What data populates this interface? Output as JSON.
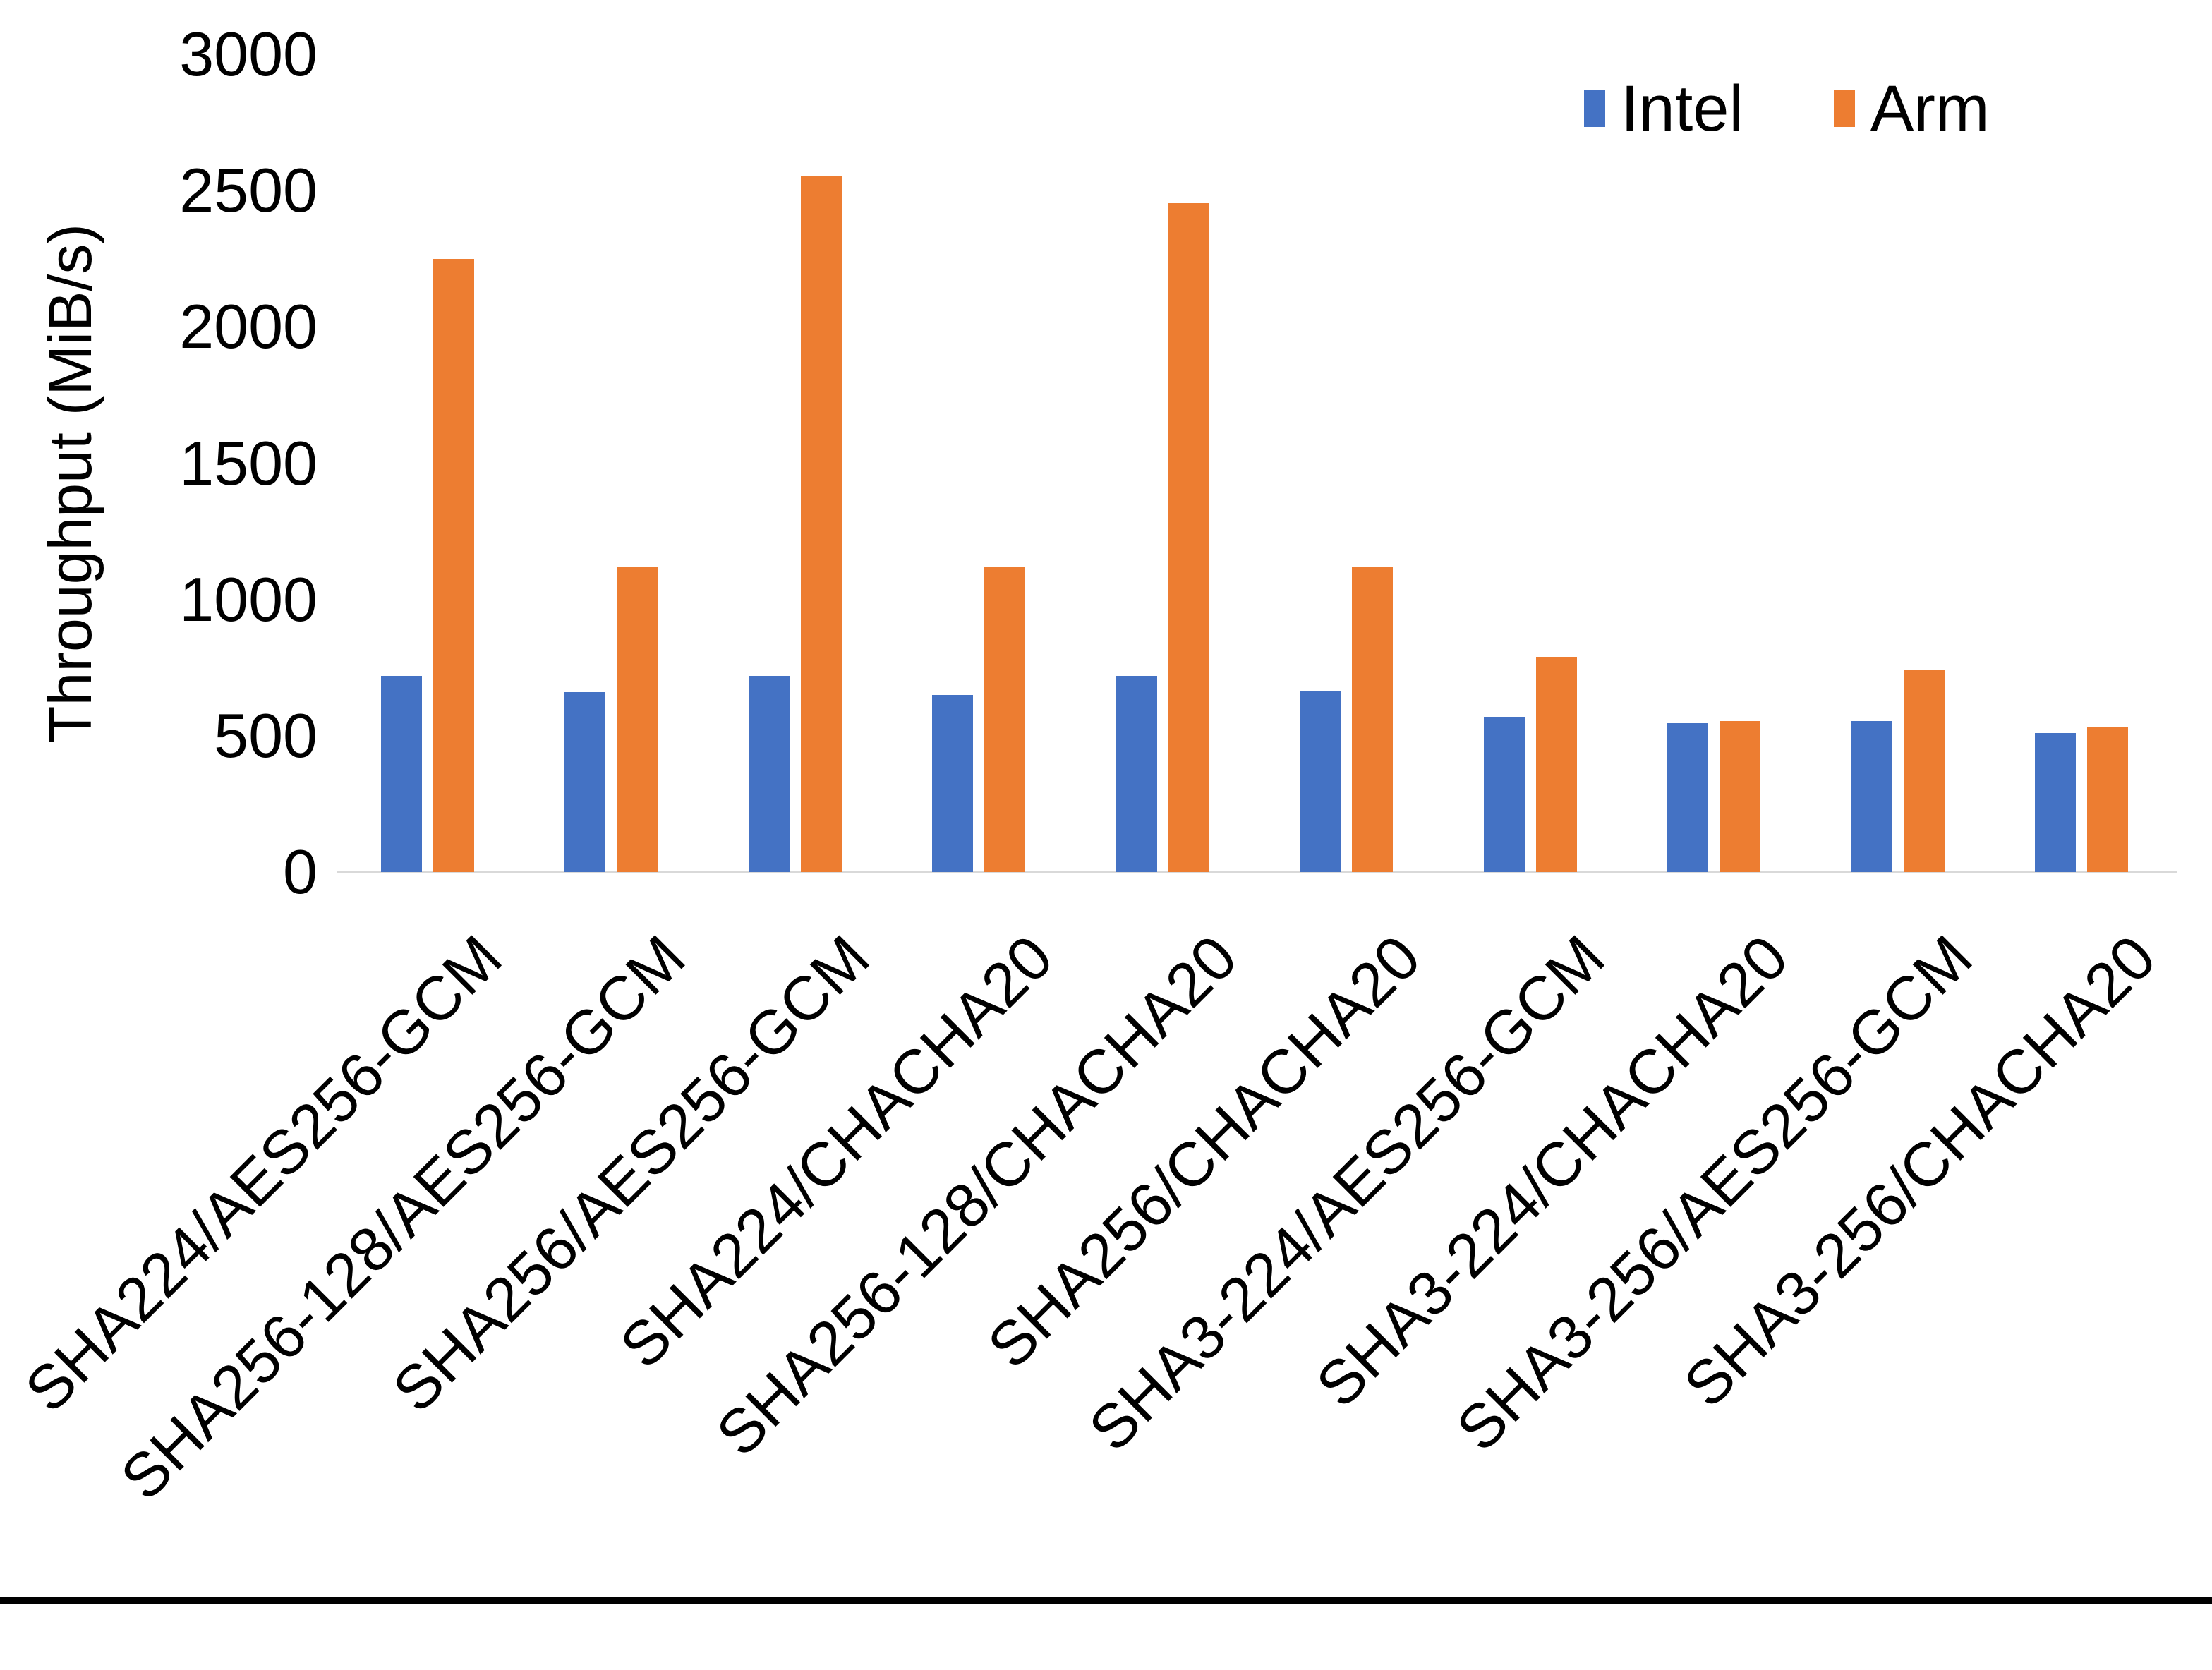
{
  "chart_data": {
    "type": "bar",
    "title": "",
    "xlabel": "",
    "ylabel": "Throughput (MiB/s)",
    "ylim": [
      0,
      3000
    ],
    "yticks": [
      0,
      500,
      1000,
      1500,
      2000,
      2500,
      3000
    ],
    "grid": false,
    "legend_position": "top-right",
    "categories": [
      "SHA224/AES256-GCM",
      "SHA256-128/AES256-GCM",
      "SHA256/AES256-GCM",
      "SHA224/CHACHA20",
      "SHA256-128/CHACHA20",
      "SHA256/CHACHA20",
      "SHA3-224/AES256-GCM",
      "SHA3-224/CHACHA20",
      "SHA3-256/AES256-GCM",
      "SHA3-256/CHACHA20"
    ],
    "series": [
      {
        "name": "Intel",
        "color": "#4472C4",
        "values": [
          720,
          660,
          720,
          650,
          720,
          665,
          570,
          545,
          555,
          510
        ]
      },
      {
        "name": "Arm",
        "color": "#ED7D31",
        "values": [
          2250,
          1120,
          2555,
          1120,
          2455,
          1120,
          790,
          555,
          740,
          530
        ]
      }
    ]
  },
  "axis": {
    "line_color": "#D9D9D9",
    "text_color": "#000000"
  },
  "figure": {
    "background": "#FFFFFF",
    "bottom_border_color": "#000000"
  }
}
